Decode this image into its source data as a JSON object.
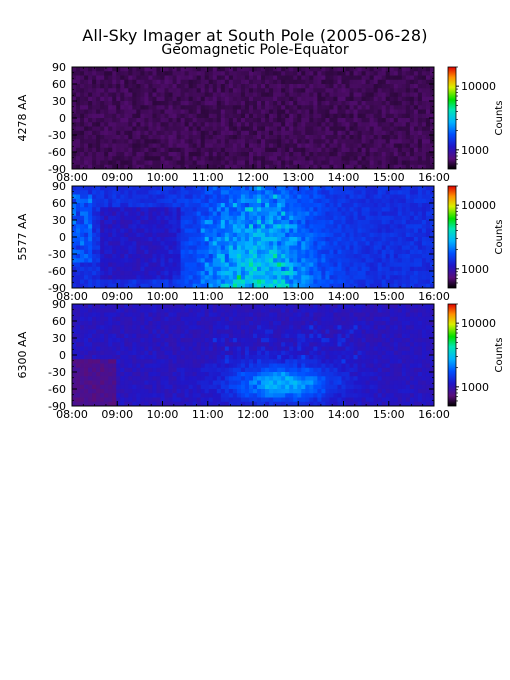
{
  "title_line1": "All-Sky Imager at South Pole (2005-06-28)",
  "title_line2": "Geomagnetic Pole-Equator",
  "colors": {
    "background": "#ffffff",
    "axis": "#000000"
  },
  "chart_data": [
    {
      "type": "heatmap",
      "title": "All-Sky Imager at South Pole (2005-06-28)",
      "subtitle": "Geomagnetic Pole-Equator",
      "ylabel": "4278 AA",
      "x_ticks": [
        "08:00",
        "09:00",
        "10:00",
        "11:00",
        "12:00",
        "13:00",
        "14:00",
        "15:00",
        "16:00"
      ],
      "x_range": [
        "08:00",
        "16:00"
      ],
      "y_ticks": [
        90,
        60,
        30,
        0,
        -30,
        -60,
        -90
      ],
      "y_range": [
        -90,
        90
      ],
      "colorbar": {
        "label": "Counts",
        "scale": "log",
        "ticks": [
          1000,
          10000
        ]
      },
      "description_level": "very dim"
    },
    {
      "type": "heatmap",
      "ylabel": "5577 AA",
      "x_ticks": [
        "08:00",
        "09:00",
        "10:00",
        "11:00",
        "12:00",
        "13:00",
        "14:00",
        "15:00",
        "16:00"
      ],
      "x_range": [
        "08:00",
        "16:00"
      ],
      "y_ticks": [
        90,
        60,
        30,
        0,
        -30,
        -60,
        -90
      ],
      "y_range": [
        -90,
        90
      ],
      "colorbar": {
        "label": "Counts",
        "scale": "log",
        "ticks": [
          1000,
          10000
        ]
      },
      "description_level": "bright"
    },
    {
      "type": "heatmap",
      "ylabel": "6300 AA",
      "x_ticks": [
        "08:00",
        "09:00",
        "10:00",
        "11:00",
        "12:00",
        "13:00",
        "14:00",
        "15:00",
        "16:00"
      ],
      "x_range": [
        "08:00",
        "16:00"
      ],
      "y_ticks": [
        90,
        60,
        30,
        0,
        -30,
        -60,
        -90
      ],
      "y_range": [
        -90,
        90
      ],
      "colorbar": {
        "label": "Counts",
        "scale": "log",
        "ticks": [
          1000,
          10000
        ]
      },
      "description_level": "medium"
    }
  ]
}
